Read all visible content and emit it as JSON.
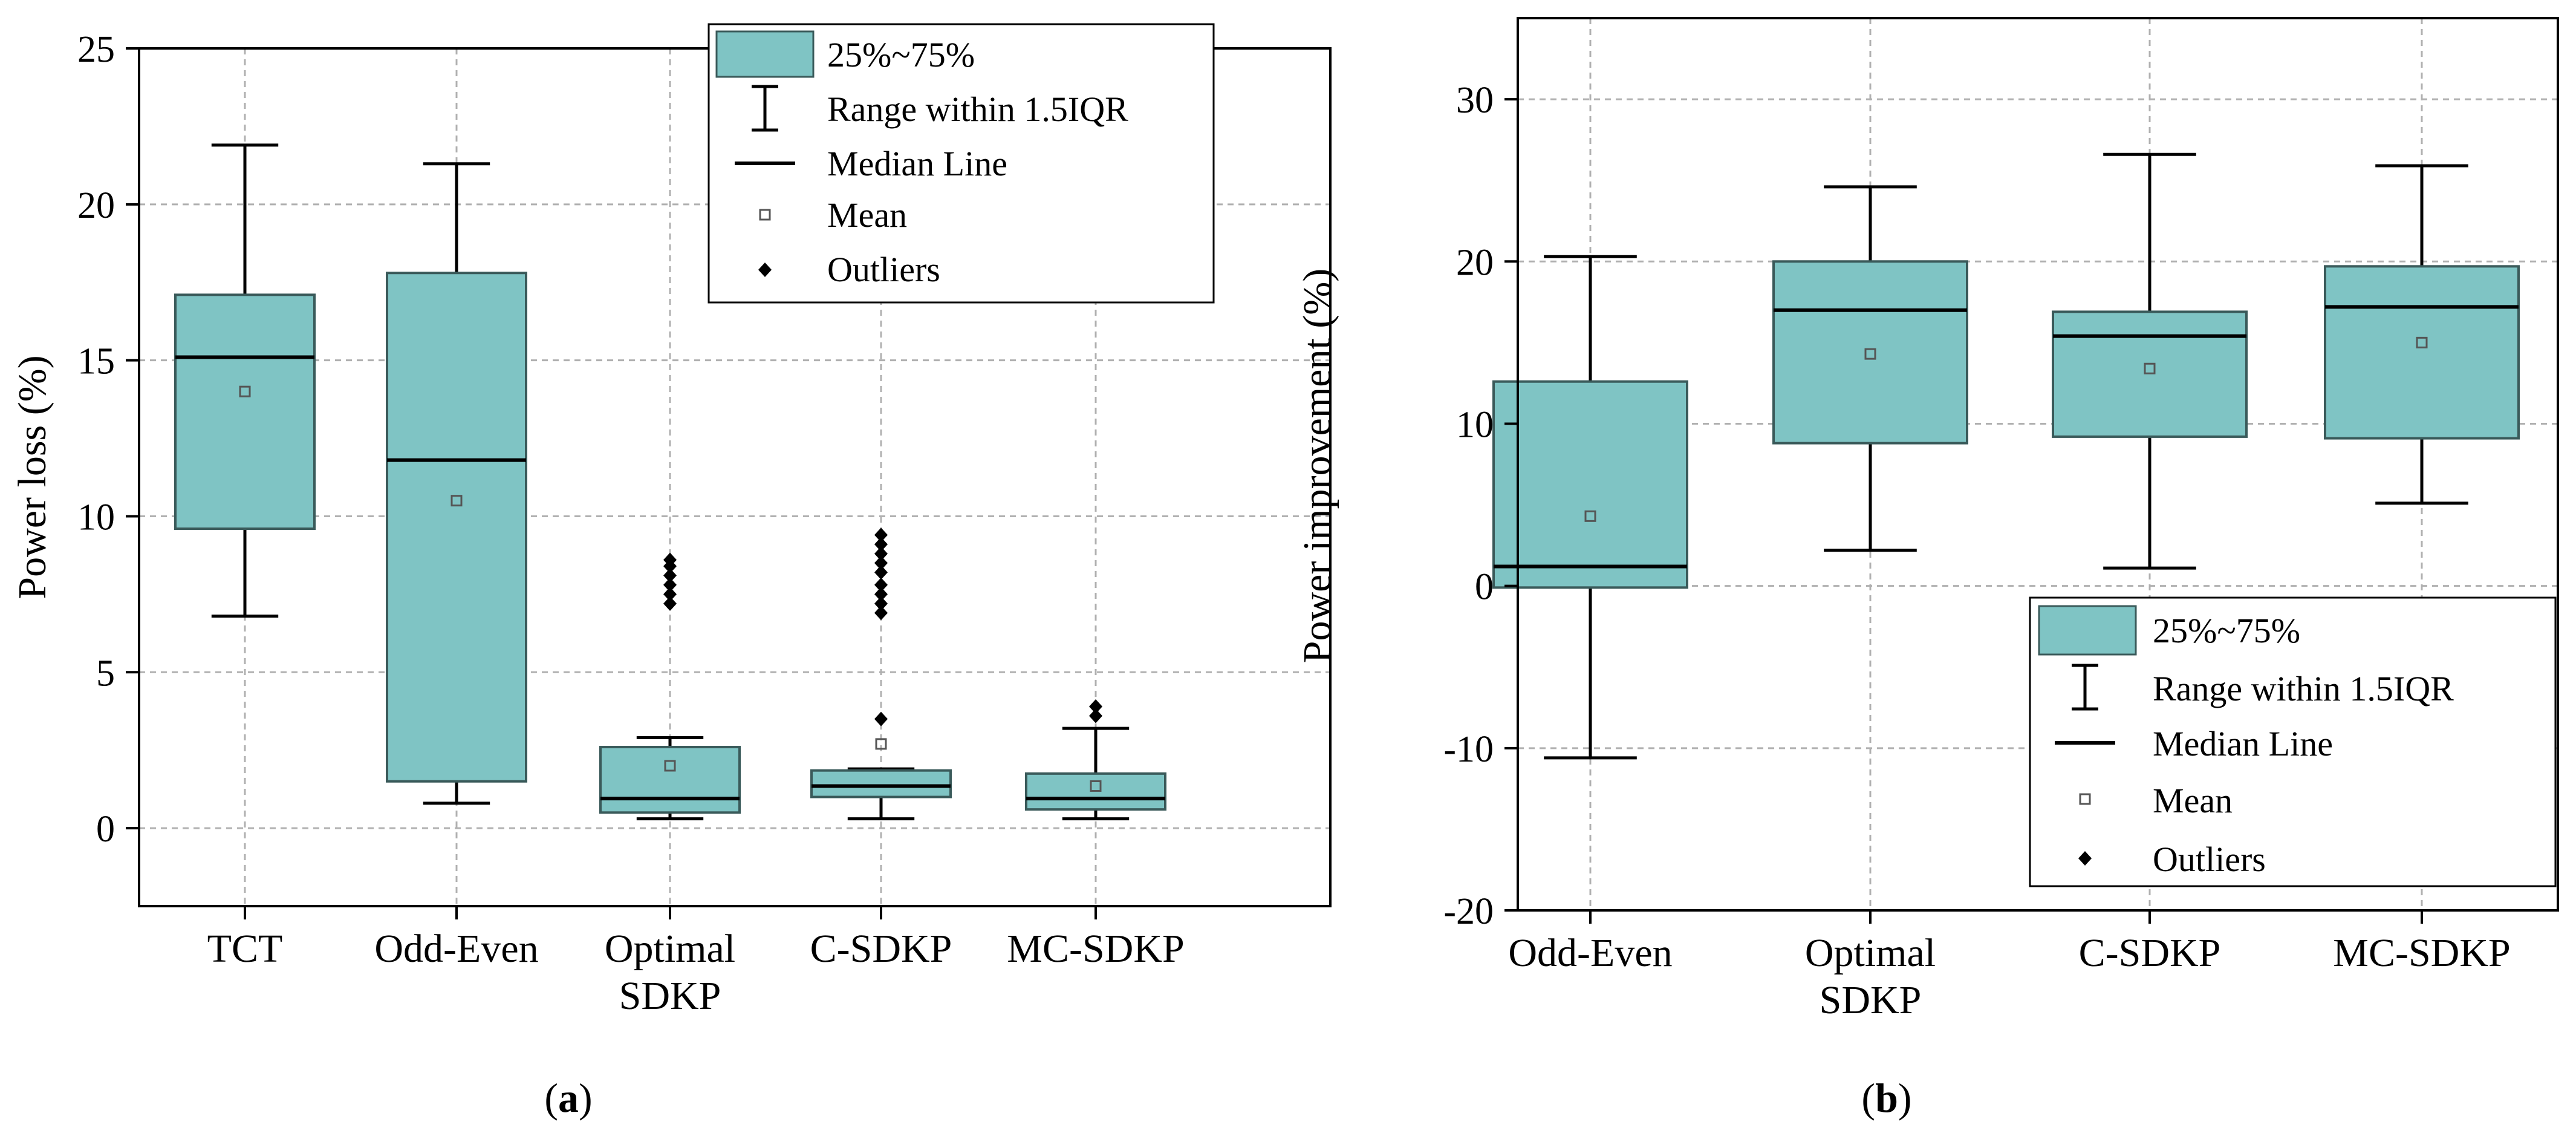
{
  "chart_data": [
    {
      "type": "box",
      "ylabel": "Power loss (%)",
      "ylim": [
        -2.5,
        25
      ],
      "yticks": [
        0,
        5,
        10,
        15,
        20,
        25
      ],
      "ytick_labels": [
        "0",
        "5",
        "10",
        "15",
        "20",
        "25"
      ],
      "grid": true,
      "legend_position": "top-right",
      "categories": [
        {
          "lines": [
            "TCT"
          ]
        },
        {
          "lines": [
            "Odd-Even"
          ]
        },
        {
          "lines": [
            "Optimal",
            "SDKP"
          ]
        },
        {
          "lines": [
            "C-SDKP"
          ]
        },
        {
          "lines": [
            "MC-SDKP"
          ]
        }
      ],
      "boxes": [
        {
          "whisker_low": 6.8,
          "q1": 9.6,
          "median": 15.1,
          "q3": 17.1,
          "whisker_high": 21.9,
          "mean": 14.0,
          "outliers": []
        },
        {
          "whisker_low": 0.8,
          "q1": 1.5,
          "median": 11.8,
          "q3": 17.8,
          "whisker_high": 21.3,
          "mean": 10.5,
          "outliers": []
        },
        {
          "whisker_low": 0.3,
          "q1": 0.5,
          "median": 0.95,
          "q3": 2.6,
          "whisker_high": 2.9,
          "mean": 2.0,
          "outliers": [
            7.2,
            7.5,
            7.8,
            8.1,
            8.4,
            8.6
          ]
        },
        {
          "whisker_low": 0.3,
          "q1": 1.0,
          "median": 1.35,
          "q3": 1.85,
          "whisker_high": 1.9,
          "mean": 2.7,
          "outliers": [
            3.5,
            6.9,
            7.2,
            7.5,
            7.8,
            8.2,
            8.5,
            8.8,
            9.1,
            9.4
          ]
        },
        {
          "whisker_low": 0.3,
          "q1": 0.6,
          "median": 0.95,
          "q3": 1.75,
          "whisker_high": 3.2,
          "mean": 1.35,
          "outliers": [
            3.6,
            3.9
          ]
        }
      ],
      "panel_label": "a"
    },
    {
      "type": "box",
      "ylabel": "Power improvement (%)",
      "ylim": [
        -20,
        35
      ],
      "yticks": [
        -20,
        -10,
        0,
        10,
        20,
        30
      ],
      "ytick_labels": [
        "-20",
        "-10",
        "0",
        "10",
        "20",
        "30"
      ],
      "grid": true,
      "legend_position": "bottom-right",
      "categories": [
        {
          "lines": [
            "Odd-Even"
          ]
        },
        {
          "lines": [
            "Optimal",
            "SDKP"
          ]
        },
        {
          "lines": [
            "C-SDKP"
          ]
        },
        {
          "lines": [
            "MC-SDKP"
          ]
        }
      ],
      "boxes": [
        {
          "whisker_low": -10.6,
          "q1": -0.1,
          "median": 1.2,
          "q3": 12.6,
          "whisker_high": 20.3,
          "mean": 4.3,
          "outliers": []
        },
        {
          "whisker_low": 2.2,
          "q1": 8.8,
          "median": 17.0,
          "q3": 20.0,
          "whisker_high": 24.6,
          "mean": 14.3,
          "outliers": []
        },
        {
          "whisker_low": 1.1,
          "q1": 9.2,
          "median": 15.4,
          "q3": 16.9,
          "whisker_high": 26.6,
          "mean": 13.4,
          "outliers": []
        },
        {
          "whisker_low": 5.1,
          "q1": 9.1,
          "median": 17.2,
          "q3": 19.7,
          "whisker_high": 25.9,
          "mean": 15.0,
          "outliers": []
        }
      ],
      "panel_label": "b"
    }
  ],
  "legend": {
    "box": "25%~75%",
    "range": "Range within 1.5IQR",
    "median": "Median Line",
    "mean": "Mean",
    "outliers": "Outliers"
  },
  "colors": {
    "box_fill": "#7fc4c4",
    "box_stroke": "#3a5a5a",
    "line": "#000000",
    "grid": "#b0b0b0",
    "mean_marker": "#555555"
  }
}
